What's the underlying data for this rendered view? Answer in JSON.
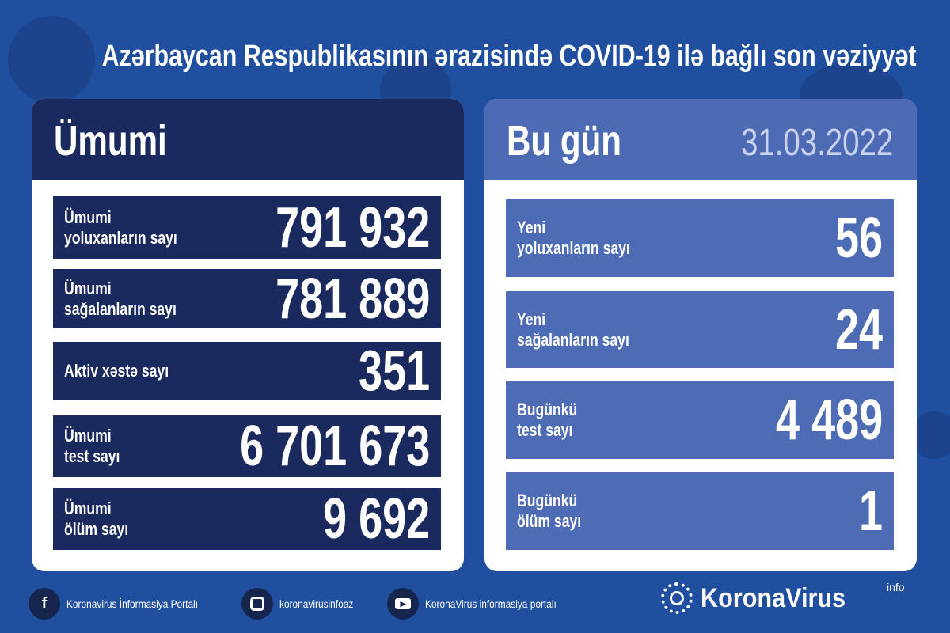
{
  "title": "Azərbaycan Respublikasının ərazisində COVID-19 ilə bağlı son vəziyyət",
  "colors": {
    "background": "#1f4f9e",
    "left_panel": "#1b2a5e",
    "right_panel": "#4d6bb5",
    "date": "#c9d3ee"
  },
  "total": {
    "heading": "Ümumi",
    "rows": [
      {
        "label": "Ümumi\nyoluxanların sayı",
        "value": "791 932"
      },
      {
        "label": "Ümumi\nsağalanların sayı",
        "value": "781 889"
      },
      {
        "label": "Aktiv xəstə sayı",
        "value": "351"
      },
      {
        "label": "Ümumi\ntest sayı",
        "value": "6 701 673"
      },
      {
        "label": "Ümumi\nölüm sayı",
        "value": "9 692"
      }
    ]
  },
  "today": {
    "heading": "Bu gün",
    "date": "31.03.2022",
    "rows": [
      {
        "label": "Yeni\nyoluxanların sayı",
        "value": "56"
      },
      {
        "label": "Yeni\nsağalanların sayı",
        "value": "24"
      },
      {
        "label": "Bugünkü\ntest sayı",
        "value": "4 489"
      },
      {
        "label": "Bugünkü\nölüm sayı",
        "value": "1"
      }
    ]
  },
  "footer": {
    "facebook": "Koronavirus İnformasiya Portalı",
    "instagram": "koronavirusinfoaz",
    "youtube": "KoronaVirus informasiya portalı",
    "brand": "KoronaVirus",
    "brand_sup": "info"
  }
}
